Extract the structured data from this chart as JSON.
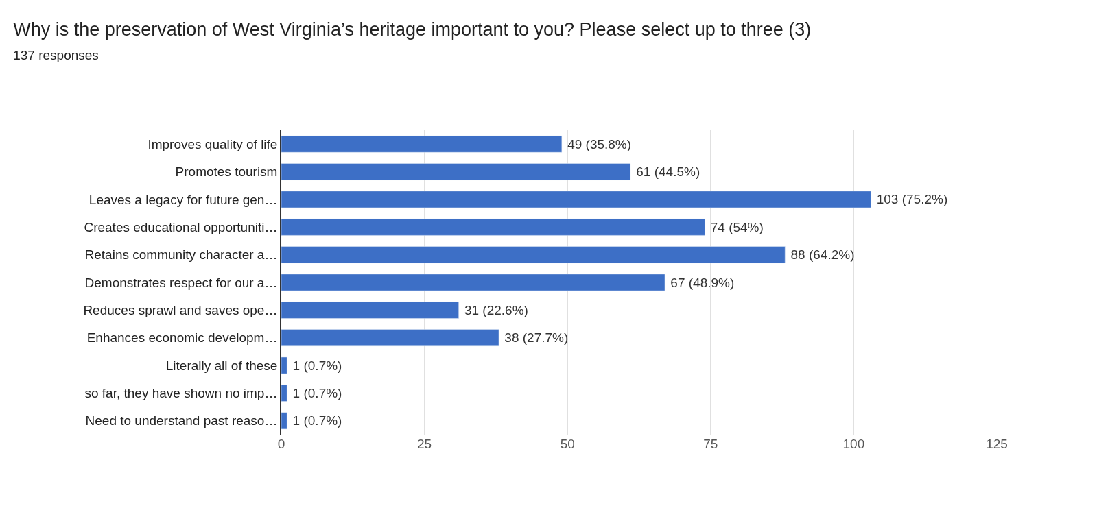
{
  "chart_data": {
    "type": "bar",
    "orientation": "horizontal",
    "title": "Why is the preservation of West Virginia’s heritage important to you? Please select up to three (3)",
    "subtitle": "137 responses",
    "categories": [
      "Improves quality of life",
      "Promotes tourism",
      "Leaves a legacy for future gen…",
      "Creates educational opportuniti…",
      "Retains community character a…",
      "Demonstrates respect for our a…",
      "Reduces sprawl and saves ope…",
      "Enhances economic developm…",
      "Literally all of these",
      "so far, they have shown no imp…",
      "Need to understand past reaso…"
    ],
    "values": [
      49,
      61,
      103,
      74,
      88,
      67,
      31,
      38,
      1,
      1,
      1
    ],
    "value_labels": [
      "49 (35.8%)",
      "61 (44.5%)",
      "103 (75.2%)",
      "74 (54%)",
      "88 (64.2%)",
      "67 (48.9%)",
      "31 (22.6%)",
      "38 (27.7%)",
      "1 (0.7%)",
      "1 (0.7%)",
      "1 (0.7%)"
    ],
    "color": "#3d6fc6",
    "xlim": [
      0,
      125
    ],
    "xticks": [
      0,
      25,
      50,
      75,
      100,
      125
    ],
    "grid": "x"
  }
}
